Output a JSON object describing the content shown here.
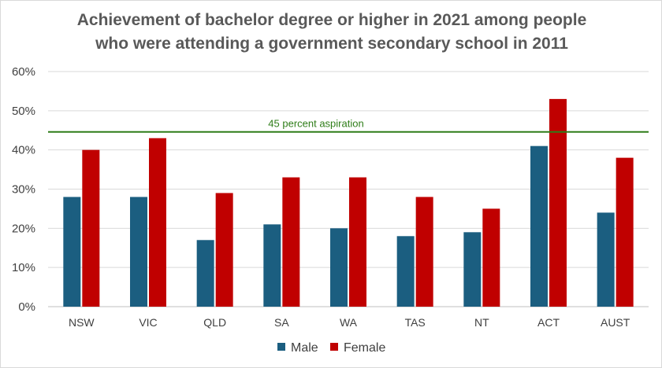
{
  "chart_data": {
    "type": "bar",
    "title_lines": [
      "Achievement of bachelor degree or higher in 2021 among people",
      "who were attending a government secondary school in 2011"
    ],
    "categories": [
      "NSW",
      "VIC",
      "QLD",
      "SA",
      "WA",
      "TAS",
      "NT",
      "ACT",
      "AUST"
    ],
    "series": [
      {
        "name": "Male",
        "values": [
          28,
          28,
          17,
          21,
          20,
          18,
          19,
          41,
          24
        ],
        "color": "#1b5e80"
      },
      {
        "name": "Female",
        "values": [
          40,
          43,
          29,
          33,
          33,
          28,
          25,
          53,
          38
        ],
        "color": "#c00000"
      }
    ],
    "y_ticks": [
      "0%",
      "10%",
      "20%",
      "30%",
      "40%",
      "50%",
      "60%"
    ],
    "ylim": [
      0,
      60
    ],
    "grid": true,
    "legend_position": "bottom",
    "reference_line": {
      "value": 44.6,
      "label": "45 percent aspiration",
      "color": "#2e7d18"
    },
    "grid_color": "#d9d9d9",
    "axis_color": "#bfbfbf"
  }
}
